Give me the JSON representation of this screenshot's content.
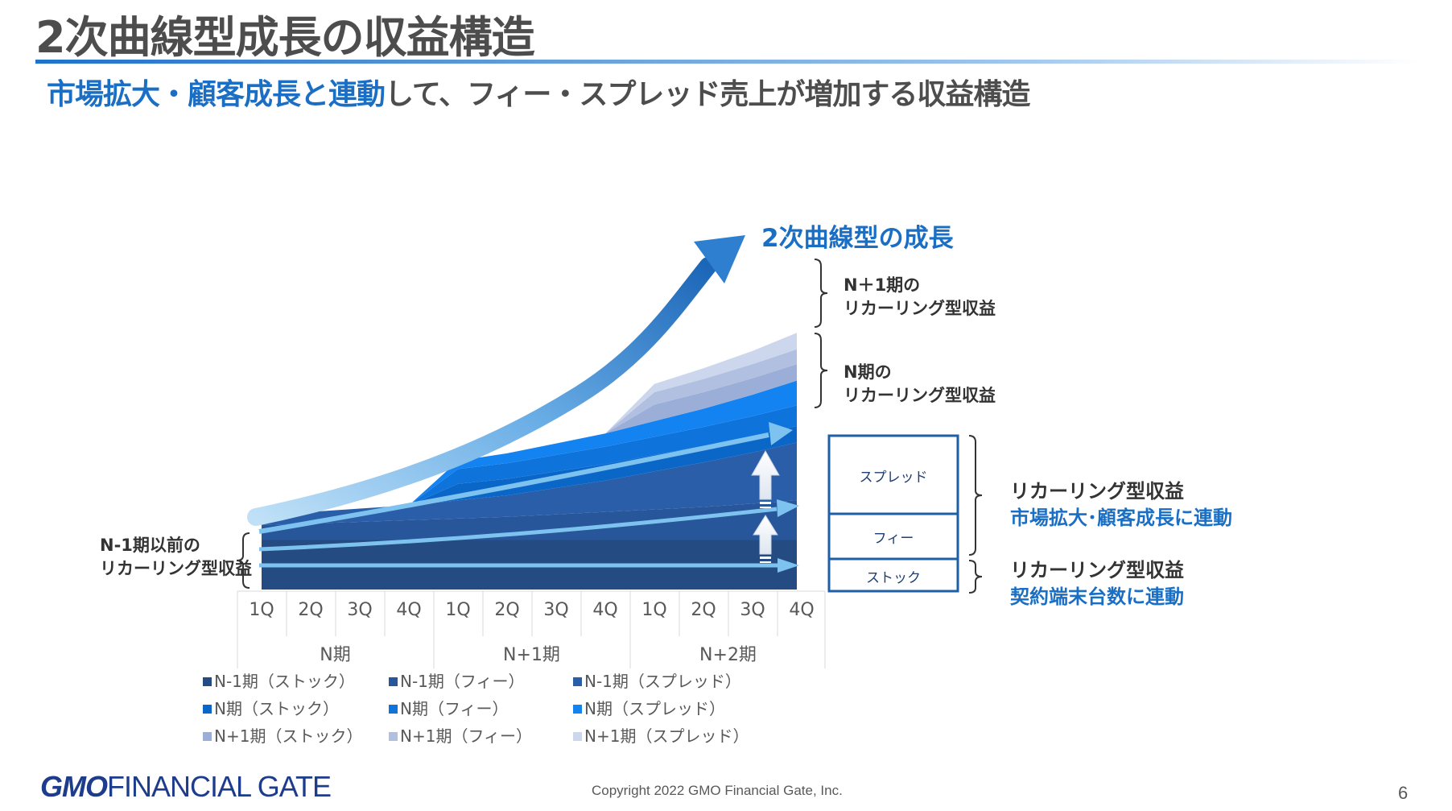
{
  "title": "2次曲線型成長の収益構造",
  "subtitle_blue": "市場拡大・顧客成長と連動",
  "subtitle_rest": "して、フィー・スプレッド売上が増加する収益構造",
  "growth_label": "2次曲線型の成長",
  "annotations": {
    "n_plus_1_line1": "N＋1期の",
    "n_plus_1_line2": "リカーリング型収益",
    "n_line1": "N期の",
    "n_line2": "リカーリング型収益",
    "prev_line1": "N-1期以前の",
    "prev_line2": "リカーリング型収益",
    "market_line1": "リカーリング型収益",
    "market_line2": "市場拡大･顧客成長に連動",
    "device_line1": "リカーリング型収益",
    "device_line2": "契約端末台数に連動"
  },
  "boxes": {
    "spread": "スプレッド",
    "fee": "フィー",
    "stock": "ストック"
  },
  "chart_data": {
    "type": "area",
    "stacked": true,
    "categories": [
      "1Q",
      "2Q",
      "3Q",
      "4Q",
      "1Q",
      "2Q",
      "3Q",
      "4Q",
      "1Q",
      "2Q",
      "3Q",
      "4Q"
    ],
    "periods": [
      "N期",
      "N+1期",
      "N+2期"
    ],
    "series": [
      {
        "name": "N-1期（ストック）",
        "values": [
          3.0,
          3.0,
          3.0,
          3.0,
          3.0,
          3.0,
          3.0,
          3.0,
          3.0,
          3.0,
          3.0,
          3.0
        ]
      },
      {
        "name": "N-1期（フィー）",
        "values": [
          0.9,
          1.0,
          1.1,
          1.2,
          1.3,
          1.4,
          1.55,
          1.7,
          1.85,
          2.0,
          2.2,
          2.4
        ]
      },
      {
        "name": "N-1期（スプレッド）",
        "values": [
          0.6,
          0.7,
          0.8,
          0.9,
          1.1,
          1.3,
          1.6,
          1.9,
          2.3,
          2.7,
          3.1,
          3.5
        ]
      },
      {
        "name": "N期（ストック）",
        "values": [
          0,
          0,
          0,
          0,
          1.0,
          1.0,
          1.0,
          1.0,
          1.0,
          1.0,
          1.0,
          1.0
        ]
      },
      {
        "name": "N期（フィー）",
        "values": [
          0,
          0,
          0,
          0,
          0.9,
          0.95,
          1.0,
          1.05,
          1.1,
          1.15,
          1.2,
          1.25
        ]
      },
      {
        "name": "N期（スプレッド）",
        "values": [
          0,
          0,
          0,
          0,
          0.5,
          0.6,
          0.7,
          0.8,
          0.95,
          1.1,
          1.3,
          1.5
        ]
      },
      {
        "name": "N+1期（ストック）",
        "values": [
          0,
          0,
          0,
          0,
          0,
          0,
          0,
          0,
          1.0,
          1.0,
          1.0,
          1.0
        ]
      },
      {
        "name": "N+1期（フィー）",
        "values": [
          0,
          0,
          0,
          0,
          0,
          0,
          0,
          0,
          0.75,
          0.8,
          0.85,
          0.9
        ]
      },
      {
        "name": "N+1期（スプレッド）",
        "values": [
          0,
          0,
          0,
          0,
          0,
          0,
          0,
          0,
          0.5,
          0.65,
          0.8,
          1.0
        ]
      }
    ],
    "colors": [
      "#244b82",
      "#27569a",
      "#2a5ea8",
      "#0a67c8",
      "#0f73dc",
      "#1483f2",
      "#9aaed8",
      "#b1c0e0",
      "#ccd6ec"
    ],
    "grid": false,
    "legend_position": "bottom"
  },
  "footer": {
    "logo_bold": "GMO",
    "logo_rest": "FINANCIAL GATE",
    "copyright": "Copyright 2022 GMO Financial Gate, Inc.",
    "page": "6"
  }
}
